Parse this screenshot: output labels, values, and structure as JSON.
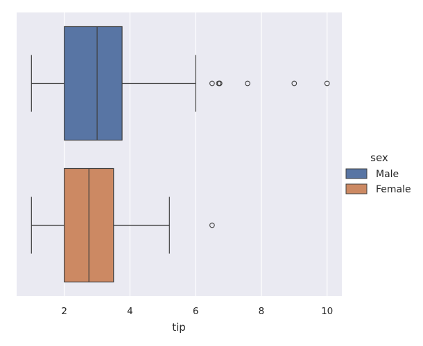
{
  "chart_data": {
    "type": "boxplot",
    "orientation": "horizontal",
    "xlabel": "tip",
    "ylabel": "",
    "xlim": [
      0.55,
      10.45
    ],
    "xticks": [
      2,
      4,
      6,
      8,
      10
    ],
    "grid": true,
    "legend": {
      "title": "sex",
      "placement": "right",
      "entries": [
        {
          "label": "Male",
          "color": "#5875a4"
        },
        {
          "label": "Female",
          "color": "#cc8963"
        }
      ]
    },
    "series": [
      {
        "name": "Male",
        "color": "#5875a4",
        "whisker_low": 1.0,
        "q1": 2.0,
        "median": 3.0,
        "q3": 3.76,
        "whisker_high": 6.0,
        "outliers": [
          6.5,
          6.7,
          6.73,
          6.73,
          7.58,
          9.0,
          10.0
        ]
      },
      {
        "name": "Female",
        "color": "#cc8963",
        "whisker_low": 1.0,
        "q1": 2.0,
        "median": 2.75,
        "q3": 3.5,
        "whisker_high": 5.2,
        "outliers": [
          6.5
        ]
      }
    ]
  }
}
